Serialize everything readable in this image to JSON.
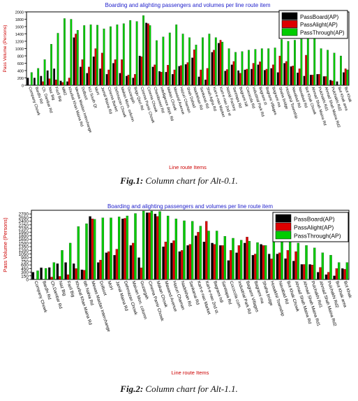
{
  "figures": [
    {
      "label": "Fig.1:",
      "caption": "Column chart for Alt-0.1."
    },
    {
      "label": "Fig.2:",
      "caption": "Column chart for Alt-1.1."
    }
  ],
  "colors": {
    "board": "#000000",
    "alight": "#dd0000",
    "through": "#00cc00",
    "title": "#2222cc",
    "axislabel": "#cc0000"
  },
  "chart_data": [
    {
      "type": "bar",
      "title": "Boarding and alighting passengers and volumes per line route item",
      "xlabel": "Line route Items",
      "ylabel": "Pass Volume (Persons)",
      "ylim": [
        0,
        2000
      ],
      "yticks": [
        0,
        200,
        400,
        600,
        800,
        1000,
        1200,
        1400,
        1600,
        1800,
        2000
      ],
      "legend_position": "top-right",
      "categories": [
        "Company Chowk",
        "Bardhi Rd",
        "Ch. Dambar Rd",
        "Naz Big",
        "Fazil Big",
        "MM2",
        "Khurbal Khan Maina Rd",
        "Mewas Maidan Interchange",
        "Dolboot",
        "KU South Qt",
        "MoH",
        "Jamal Maina Rd",
        "Cinema Barket",
        "Dehmazan Chowk",
        "Makan Mom. column",
        "Guzargah",
        "Bagu Qazi Rd",
        "Cinema Pamir Chowk",
        "Cinema Chowk",
        "Chandaneel Rd",
        "Intelligence dept. Rd",
        "Makan Chowk",
        "Mawand Avenue",
        "Hazuri Chaman",
        "Shah Dahad",
        "Nadekhan Rd",
        "Sankanai Rd",
        "Shah Agha Rd",
        "Kart-e-nao Market",
        "Kart-e-nao 2nd st",
        "Nasaji Factory",
        "Saretapa Rd",
        "Bagrami hill",
        "Cococola Rd",
        "Industrial Park Rd",
        "Bagrami st",
        "Bagrami Villages",
        "Bagrami ma",
        "Shaha bridge",
        "Hosaikhil Township",
        "Navabad Rd",
        "Navabad Rd",
        "Bot Khak Chowk",
        "Ahmad Shah Maina Rd",
        "Pulchakhi Rd1",
        "Ahmad Shah Maina Rd2",
        "Pulchakhi Rd2",
        "Bot Khak area",
        "Bot Khak"
      ],
      "series": [
        {
          "name": "PassBoard(AP)",
          "values": [
            200,
            200,
            250,
            400,
            450,
            120,
            100,
            1300,
            500,
            330,
            780,
            450,
            300,
            600,
            330,
            250,
            200,
            800,
            1700,
            500,
            380,
            360,
            300,
            520,
            570,
            750,
            230,
            150,
            900,
            1150,
            390,
            560,
            400,
            420,
            440,
            560,
            410,
            460,
            350,
            600,
            510,
            340,
            250,
            280,
            300,
            240,
            140,
            100,
            350
          ]
        },
        {
          "name": "PassAlight(AP)",
          "values": [
            0,
            0,
            100,
            180,
            150,
            80,
            200,
            1400,
            700,
            500,
            1000,
            880,
            420,
            700,
            700,
            280,
            300,
            780,
            1680,
            560,
            360,
            550,
            420,
            540,
            620,
            970,
            420,
            460,
            960,
            1230,
            430,
            650,
            330,
            440,
            600,
            640,
            440,
            560,
            800,
            650,
            530,
            450,
            820,
            280,
            300,
            240,
            120,
            0,
            450
          ]
        },
        {
          "name": "PassThrough(AP)",
          "values": [
            350,
            460,
            700,
            1120,
            1420,
            1820,
            1800,
            1500,
            1630,
            1650,
            1640,
            1540,
            1600,
            1650,
            1680,
            1770,
            1740,
            1900,
            1630,
            1220,
            1320,
            1430,
            1650,
            1400,
            1300,
            1100,
            1300,
            1400,
            1300,
            1180,
            1000,
            900,
            920,
            960,
            980,
            1000,
            1000,
            1020,
            1250,
            1200,
            1230,
            1260,
            1280,
            1390,
            1000,
            960,
            880,
            800,
            420
          ]
        }
      ]
    },
    {
      "type": "bar",
      "title": "Boarding and alighting passengers and volumes per line route item",
      "xlabel": "Line route Items",
      "ylabel": "Pass Volume (Persons)",
      "ylim": [
        0,
        2850
      ],
      "yticks": [
        0,
        150,
        300,
        450,
        600,
        750,
        900,
        1050,
        1200,
        1350,
        1500,
        1650,
        1800,
        1950,
        2100,
        2250,
        2400,
        2550,
        2700
      ],
      "legend_position": "top-right",
      "categories": [
        "Company Chowk",
        "Bardhi Rd",
        "Ch.Dambar Rd",
        "Naz Big",
        "Fazil Big",
        "Khurbal Khan Maina Rd",
        "6th Nahia Rd",
        "Mewas Maidan Interchange",
        "Dolboot",
        "MoH",
        "Jamal Maina Rd",
        "Dehmazan Chowk",
        "Maivan Mon. column",
        "Guzargah",
        "Cinema Pamir Chowk",
        "Makan Chowk",
        "Mawand Avenue",
        "Hazuri Chaman",
        "Nadekhan Rd",
        "Sankanai Rd",
        "Kart-e-nao Market",
        "Kart-e-nao 2nd st.",
        "Bagrami hill",
        "Saretapa Rd",
        "Cococola com.",
        "Industrial Park Rd",
        "Bagrami Villages",
        "Bagrami ma",
        "Shaha bridge",
        "Hosaikhil Township",
        "Navabad Rd",
        "Bot Khak Chowk",
        "Ahmad Shah Maina Rd",
        "Ahmad Shah Maina Rd1",
        "Pulchakhi Rd1",
        "Ahmad Shah Maina Rd2",
        "Pulchakhi Rd2",
        "Bot Khak area",
        "Bot Khak"
      ],
      "series": [
        {
          "name": "PassBoard(AP)",
          "values": [
            300,
            480,
            490,
            650,
            700,
            650,
            400,
            2600,
            700,
            1100,
            1000,
            2500,
            1400,
            900,
            2750,
            2700,
            1350,
            1500,
            1150,
            1400,
            1800,
            1550,
            1500,
            1400,
            780,
            1100,
            1500,
            1000,
            1450,
            1050,
            1050,
            860,
            760,
            620,
            620,
            300,
            200,
            150,
            450
          ]
        },
        {
          "name": "PassAlight(AP)",
          "values": [
            0,
            0,
            100,
            130,
            200,
            450,
            380,
            2500,
            800,
            1150,
            1250,
            2520,
            1500,
            480,
            2750,
            2600,
            1550,
            1600,
            1200,
            1450,
            1950,
            2400,
            1450,
            1400,
            1200,
            1400,
            1750,
            1050,
            1400,
            850,
            1100,
            1200,
            1150,
            620,
            600,
            500,
            300,
            450,
            420
          ]
        },
        {
          "name": "PassThrough(AP)",
          "values": [
            360,
            460,
            700,
            1200,
            1500,
            2180,
            2300,
            2480,
            2540,
            2540,
            2580,
            2620,
            2720,
            2820,
            2820,
            2800,
            2620,
            2500,
            2420,
            2400,
            2200,
            2000,
            2000,
            1780,
            1700,
            1620,
            1580,
            1520,
            1400,
            1950,
            1700,
            1700,
            1500,
            1400,
            1300,
            1100,
            1000,
            700,
            700
          ]
        }
      ]
    }
  ]
}
